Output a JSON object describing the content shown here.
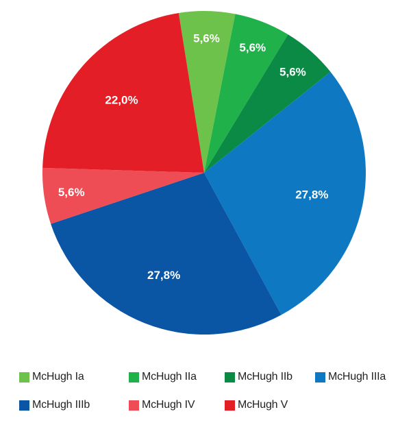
{
  "chart_data": {
    "type": "pie",
    "title": "",
    "slices": [
      {
        "name": "McHugh Ia",
        "value": 5.6,
        "label": "5,6%",
        "color": "#6cc24a"
      },
      {
        "name": "McHugh IIa",
        "value": 5.6,
        "label": "5,6%",
        "color": "#20b14a"
      },
      {
        "name": "McHugh IIb",
        "value": 5.6,
        "label": "5,6%",
        "color": "#0a8a44"
      },
      {
        "name": "McHugh IIIa",
        "value": 27.8,
        "label": "27,8%",
        "color": "#0f78c3"
      },
      {
        "name": "McHugh IIIb",
        "value": 27.8,
        "label": "27,8%",
        "color": "#0a56a5"
      },
      {
        "name": "McHugh IV",
        "value": 5.6,
        "label": "5,6%",
        "color": "#ee4d55"
      },
      {
        "name": "McHugh V",
        "value": 22.0,
        "label": "22,0%",
        "color": "#e41e26"
      }
    ],
    "legend_position": "bottom"
  }
}
